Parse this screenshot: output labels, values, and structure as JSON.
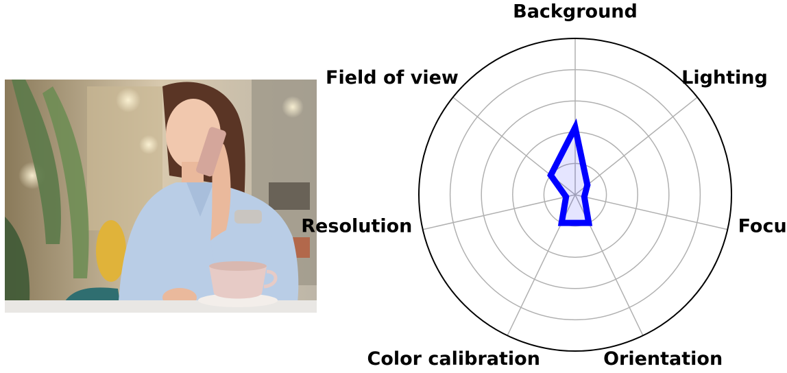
{
  "photo": {
    "subject": "woman on phone in cafe with coffee cup"
  },
  "chart_data": {
    "type": "radar",
    "title": "",
    "axes": [
      "Background",
      "Lighting",
      "Focus",
      "Orientation",
      "Color calibration",
      "Resolution",
      "Field of view"
    ],
    "series": [
      {
        "values": [
          0.43,
          0.1,
          0.06,
          0.2,
          0.2,
          0.06,
          0.2
        ],
        "color": "#0000ff",
        "fill": "rgba(0,0,255,0.1)"
      }
    ],
    "rlim": [
      0,
      1
    ],
    "rings": [
      0.2,
      0.4,
      0.6,
      0.8
    ],
    "grid": true,
    "legend": "none"
  }
}
